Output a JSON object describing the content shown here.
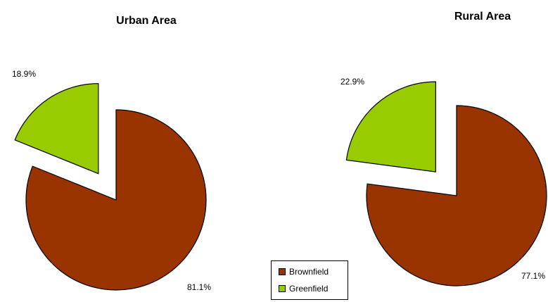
{
  "chart_data": [
    {
      "type": "pie",
      "title": "Urban Area",
      "slices": [
        {
          "name": "Brownfield",
          "value": 81.1,
          "label": "81.1%",
          "color": "#993300"
        },
        {
          "name": "Greenfield",
          "value": 18.9,
          "label": "18.9%",
          "color": "#99cc00"
        }
      ]
    },
    {
      "type": "pie",
      "title": "Rural Area",
      "slices": [
        {
          "name": "Brownfield",
          "value": 77.1,
          "label": "77.1%",
          "color": "#993300"
        },
        {
          "name": "Greenfield",
          "value": 22.9,
          "label": "22.9%",
          "color": "#99cc00"
        }
      ]
    }
  ],
  "legend": {
    "placement": "bottom-center",
    "items": [
      {
        "label": "Brownfield",
        "color": "#993300"
      },
      {
        "label": "Greenfield",
        "color": "#99cc00"
      }
    ]
  }
}
